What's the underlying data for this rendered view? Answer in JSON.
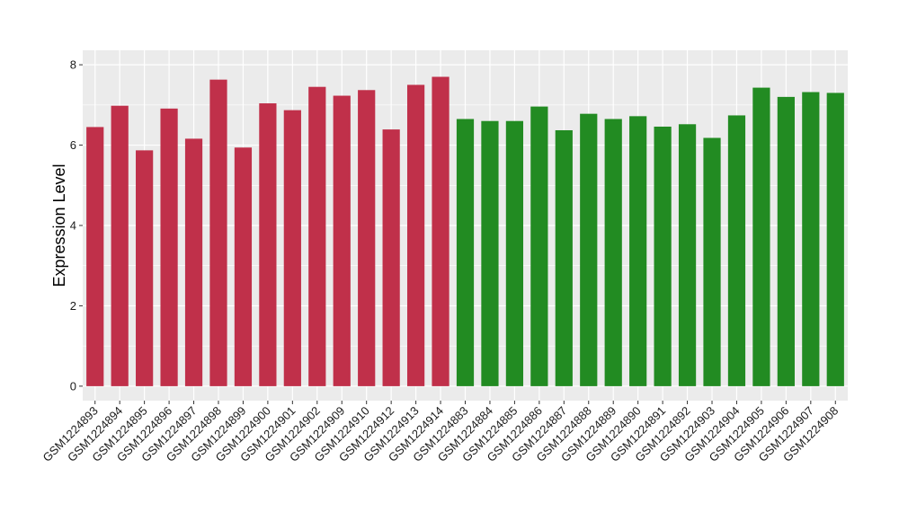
{
  "chart_data": {
    "type": "bar",
    "title": "",
    "xlabel": "",
    "ylabel": "Expression Level",
    "ylim": [
      0,
      8
    ],
    "yticks": [
      0,
      2,
      4,
      6,
      8
    ],
    "grid": true,
    "legend": "none",
    "categories": [
      "GSM1224893",
      "GSM1224894",
      "GSM1224895",
      "GSM1224896",
      "GSM1224897",
      "GSM1224898",
      "GSM1224899",
      "GSM1224900",
      "GSM1224901",
      "GSM1224902",
      "GSM1224909",
      "GSM1224910",
      "GSM1224912",
      "GSM1224913",
      "GSM1224914",
      "GSM1224883",
      "GSM1224884",
      "GSM1224885",
      "GSM1224886",
      "GSM1224887",
      "GSM1224888",
      "GSM1224889",
      "GSM1224890",
      "GSM1224891",
      "GSM1224892",
      "GSM1224903",
      "GSM1224904",
      "GSM1224905",
      "GSM1224906",
      "GSM1224907",
      "GSM1224908"
    ],
    "values": [
      6.45,
      6.98,
      5.87,
      6.91,
      6.16,
      7.63,
      5.94,
      7.04,
      6.87,
      7.45,
      7.23,
      7.37,
      6.39,
      7.5,
      7.7,
      6.65,
      6.6,
      6.6,
      6.96,
      6.37,
      6.78,
      6.65,
      6.72,
      6.46,
      6.52,
      6.18,
      6.74,
      7.43,
      7.2,
      7.32,
      7.3
    ],
    "groups": [
      "a",
      "a",
      "a",
      "a",
      "a",
      "a",
      "a",
      "a",
      "a",
      "a",
      "a",
      "a",
      "a",
      "a",
      "a",
      "b",
      "b",
      "b",
      "b",
      "b",
      "b",
      "b",
      "b",
      "b",
      "b",
      "b",
      "b",
      "b",
      "b",
      "b",
      "b"
    ],
    "group_colors": {
      "a": "#c0304a",
      "b": "#228b22"
    },
    "panel_background": "#ebebeb",
    "gridline_color": "#ffffff"
  }
}
